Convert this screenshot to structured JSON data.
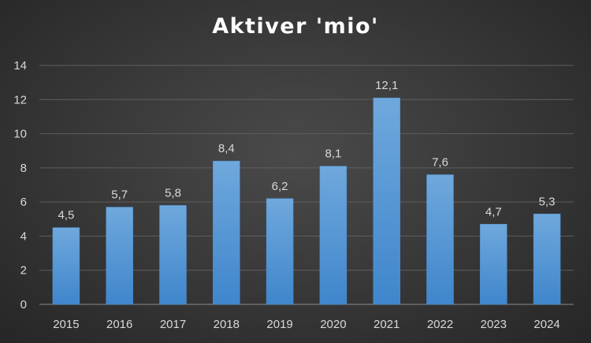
{
  "chart_data": {
    "type": "bar",
    "title": "Aktiver 'mio'",
    "categories": [
      "2015",
      "2016",
      "2017",
      "2018",
      "2019",
      "2020",
      "2021",
      "2022",
      "2023",
      "2024"
    ],
    "values": [
      4.5,
      5.7,
      5.8,
      8.4,
      6.2,
      8.1,
      12.1,
      7.6,
      4.7,
      5.3
    ],
    "data_labels": [
      "4,5",
      "5,7",
      "5,8",
      "8,4",
      "6,2",
      "8,1",
      "12,1",
      "7,6",
      "4,7",
      "5,3"
    ],
    "yticks": [
      "0",
      "2",
      "4",
      "6",
      "8",
      "10",
      "12",
      "14"
    ],
    "ylim": [
      0,
      14
    ],
    "grid": true,
    "bar_color": "#5b9bd5",
    "background_color": "#3a3a3a",
    "text_color": "#d9d9d9"
  }
}
